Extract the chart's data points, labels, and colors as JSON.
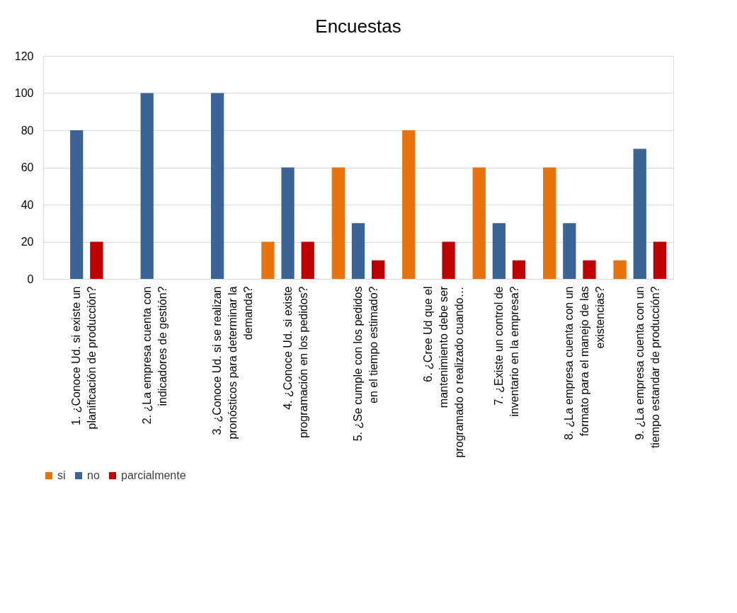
{
  "chart_data": {
    "type": "bar",
    "title": "Encuestas",
    "categories": [
      "1. ¿Conoce Ud. si existe un planificación de producción?",
      "2. ¿La empresa cuenta con indicadores de gestión?",
      "3. ¿Conoce Ud. si se realizan pronósticos para determinar la demanda?",
      "4. ¿Conoce Ud. si existe programación en los pedidos?",
      "5. ¿Se cumple con los pedidos en el tiempo estimado?",
      "6. ¿Cree Ud que el mantenimiento debe ser programado o realizado cuando…",
      "7. ¿Existe un control de inventario en la empresa?",
      "8. ¿La empresa cuenta con un formato para el manejo de las existencias?",
      "9. ¿La empresa cuenta con un tiempo estandar de producción?"
    ],
    "series": [
      {
        "name": "si",
        "color": "#e8720c",
        "values": [
          0,
          0,
          0,
          20,
          60,
          80,
          60,
          60,
          10
        ]
      },
      {
        "name": "no",
        "color": "#3b6496",
        "values": [
          80,
          100,
          100,
          60,
          30,
          0,
          30,
          30,
          70
        ]
      },
      {
        "name": "parcialmente",
        "color": "#c00000",
        "values": [
          20,
          0,
          0,
          20,
          10,
          20,
          10,
          10,
          20
        ]
      }
    ],
    "ylim": [
      0,
      120
    ],
    "yticks": [
      0,
      20,
      40,
      60,
      80,
      100,
      120
    ],
    "grid": "y",
    "legend": "bottom"
  }
}
